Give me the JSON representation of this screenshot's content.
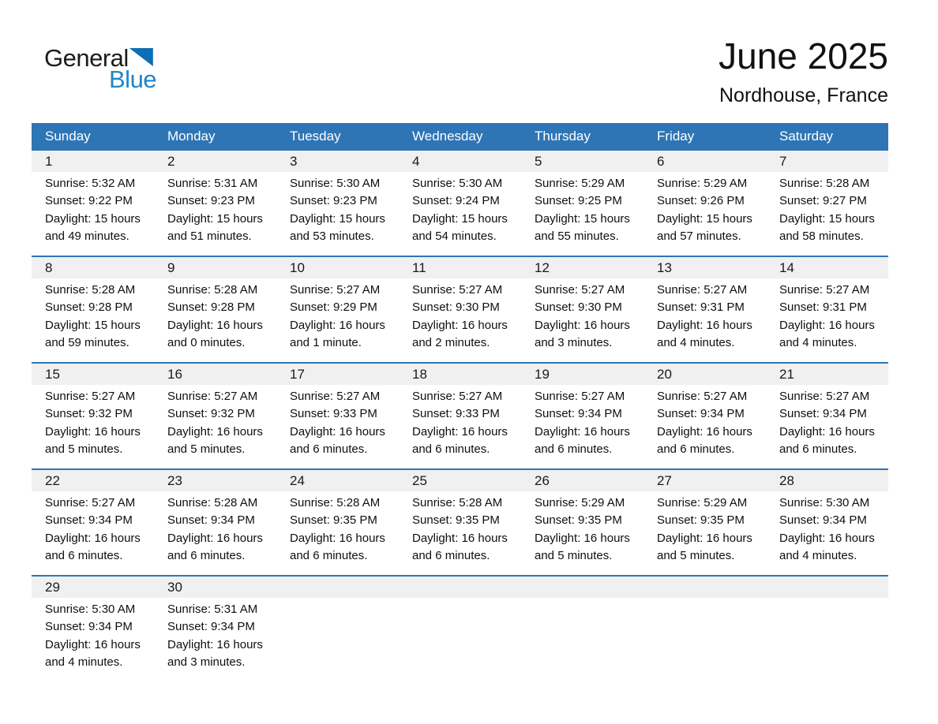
{
  "logo": {
    "word_general": "General",
    "word_blue": "Blue"
  },
  "title": {
    "month_year": "June 2025",
    "location": "Nordhouse, France"
  },
  "colors": {
    "header_bar_blue": "#2e75b6",
    "week_divider_blue": "#2e75b6",
    "day_number_band_gray": "#f0f0f0",
    "logo_blue_text": "#1e86c7",
    "logo_triangle_blue": "#0d6db5"
  },
  "calendar": {
    "weekdays": [
      "Sunday",
      "Monday",
      "Tuesday",
      "Wednesday",
      "Thursday",
      "Friday",
      "Saturday"
    ],
    "weeks": [
      [
        {
          "day": "1",
          "sunrise": "Sunrise: 5:32 AM",
          "sunset": "Sunset: 9:22 PM",
          "daylight": "Daylight: 15 hours and 49 minutes."
        },
        {
          "day": "2",
          "sunrise": "Sunrise: 5:31 AM",
          "sunset": "Sunset: 9:23 PM",
          "daylight": "Daylight: 15 hours and 51 minutes."
        },
        {
          "day": "3",
          "sunrise": "Sunrise: 5:30 AM",
          "sunset": "Sunset: 9:23 PM",
          "daylight": "Daylight: 15 hours and 53 minutes."
        },
        {
          "day": "4",
          "sunrise": "Sunrise: 5:30 AM",
          "sunset": "Sunset: 9:24 PM",
          "daylight": "Daylight: 15 hours and 54 minutes."
        },
        {
          "day": "5",
          "sunrise": "Sunrise: 5:29 AM",
          "sunset": "Sunset: 9:25 PM",
          "daylight": "Daylight: 15 hours and 55 minutes."
        },
        {
          "day": "6",
          "sunrise": "Sunrise: 5:29 AM",
          "sunset": "Sunset: 9:26 PM",
          "daylight": "Daylight: 15 hours and 57 minutes."
        },
        {
          "day": "7",
          "sunrise": "Sunrise: 5:28 AM",
          "sunset": "Sunset: 9:27 PM",
          "daylight": "Daylight: 15 hours and 58 minutes."
        }
      ],
      [
        {
          "day": "8",
          "sunrise": "Sunrise: 5:28 AM",
          "sunset": "Sunset: 9:28 PM",
          "daylight": "Daylight: 15 hours and 59 minutes."
        },
        {
          "day": "9",
          "sunrise": "Sunrise: 5:28 AM",
          "sunset": "Sunset: 9:28 PM",
          "daylight": "Daylight: 16 hours and 0 minutes."
        },
        {
          "day": "10",
          "sunrise": "Sunrise: 5:27 AM",
          "sunset": "Sunset: 9:29 PM",
          "daylight": "Daylight: 16 hours and 1 minute."
        },
        {
          "day": "11",
          "sunrise": "Sunrise: 5:27 AM",
          "sunset": "Sunset: 9:30 PM",
          "daylight": "Daylight: 16 hours and 2 minutes."
        },
        {
          "day": "12",
          "sunrise": "Sunrise: 5:27 AM",
          "sunset": "Sunset: 9:30 PM",
          "daylight": "Daylight: 16 hours and 3 minutes."
        },
        {
          "day": "13",
          "sunrise": "Sunrise: 5:27 AM",
          "sunset": "Sunset: 9:31 PM",
          "daylight": "Daylight: 16 hours and 4 minutes."
        },
        {
          "day": "14",
          "sunrise": "Sunrise: 5:27 AM",
          "sunset": "Sunset: 9:31 PM",
          "daylight": "Daylight: 16 hours and 4 minutes."
        }
      ],
      [
        {
          "day": "15",
          "sunrise": "Sunrise: 5:27 AM",
          "sunset": "Sunset: 9:32 PM",
          "daylight": "Daylight: 16 hours and 5 minutes."
        },
        {
          "day": "16",
          "sunrise": "Sunrise: 5:27 AM",
          "sunset": "Sunset: 9:32 PM",
          "daylight": "Daylight: 16 hours and 5 minutes."
        },
        {
          "day": "17",
          "sunrise": "Sunrise: 5:27 AM",
          "sunset": "Sunset: 9:33 PM",
          "daylight": "Daylight: 16 hours and 6 minutes."
        },
        {
          "day": "18",
          "sunrise": "Sunrise: 5:27 AM",
          "sunset": "Sunset: 9:33 PM",
          "daylight": "Daylight: 16 hours and 6 minutes."
        },
        {
          "day": "19",
          "sunrise": "Sunrise: 5:27 AM",
          "sunset": "Sunset: 9:34 PM",
          "daylight": "Daylight: 16 hours and 6 minutes."
        },
        {
          "day": "20",
          "sunrise": "Sunrise: 5:27 AM",
          "sunset": "Sunset: 9:34 PM",
          "daylight": "Daylight: 16 hours and 6 minutes."
        },
        {
          "day": "21",
          "sunrise": "Sunrise: 5:27 AM",
          "sunset": "Sunset: 9:34 PM",
          "daylight": "Daylight: 16 hours and 6 minutes."
        }
      ],
      [
        {
          "day": "22",
          "sunrise": "Sunrise: 5:27 AM",
          "sunset": "Sunset: 9:34 PM",
          "daylight": "Daylight: 16 hours and 6 minutes."
        },
        {
          "day": "23",
          "sunrise": "Sunrise: 5:28 AM",
          "sunset": "Sunset: 9:34 PM",
          "daylight": "Daylight: 16 hours and 6 minutes."
        },
        {
          "day": "24",
          "sunrise": "Sunrise: 5:28 AM",
          "sunset": "Sunset: 9:35 PM",
          "daylight": "Daylight: 16 hours and 6 minutes."
        },
        {
          "day": "25",
          "sunrise": "Sunrise: 5:28 AM",
          "sunset": "Sunset: 9:35 PM",
          "daylight": "Daylight: 16 hours and 6 minutes."
        },
        {
          "day": "26",
          "sunrise": "Sunrise: 5:29 AM",
          "sunset": "Sunset: 9:35 PM",
          "daylight": "Daylight: 16 hours and 5 minutes."
        },
        {
          "day": "27",
          "sunrise": "Sunrise: 5:29 AM",
          "sunset": "Sunset: 9:35 PM",
          "daylight": "Daylight: 16 hours and 5 minutes."
        },
        {
          "day": "28",
          "sunrise": "Sunrise: 5:30 AM",
          "sunset": "Sunset: 9:34 PM",
          "daylight": "Daylight: 16 hours and 4 minutes."
        }
      ],
      [
        {
          "day": "29",
          "sunrise": "Sunrise: 5:30 AM",
          "sunset": "Sunset: 9:34 PM",
          "daylight": "Daylight: 16 hours and 4 minutes."
        },
        {
          "day": "30",
          "sunrise": "Sunrise: 5:31 AM",
          "sunset": "Sunset: 9:34 PM",
          "daylight": "Daylight: 16 hours and 3 minutes."
        },
        {
          "day": "",
          "sunrise": "",
          "sunset": "",
          "daylight": ""
        },
        {
          "day": "",
          "sunrise": "",
          "sunset": "",
          "daylight": ""
        },
        {
          "day": "",
          "sunrise": "",
          "sunset": "",
          "daylight": ""
        },
        {
          "day": "",
          "sunrise": "",
          "sunset": "",
          "daylight": ""
        },
        {
          "day": "",
          "sunrise": "",
          "sunset": "",
          "daylight": ""
        }
      ]
    ]
  }
}
